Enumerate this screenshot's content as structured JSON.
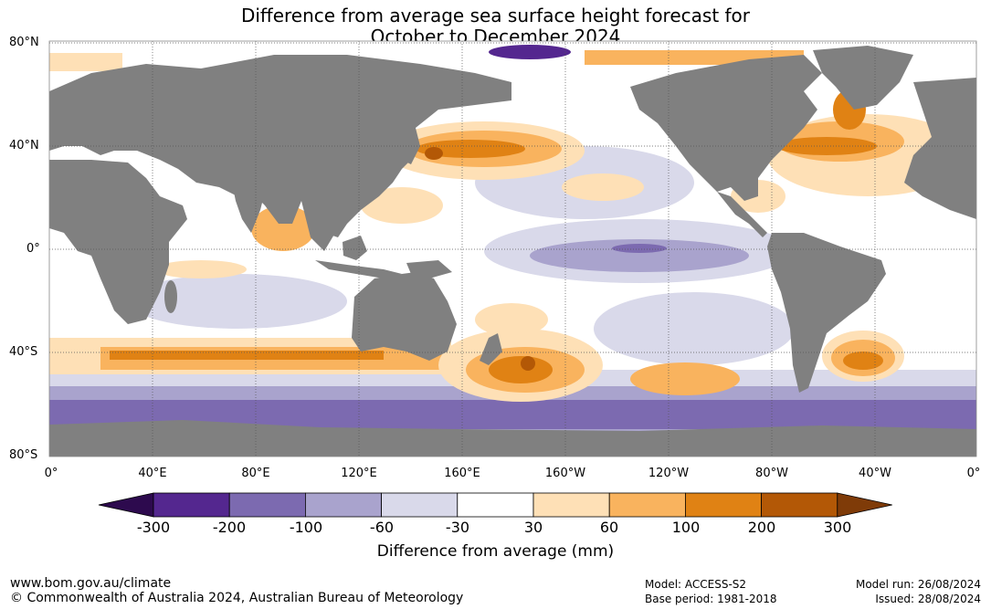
{
  "title": {
    "line1": "Difference from average sea surface height forecast for",
    "line2": "October to December 2024"
  },
  "map": {
    "lat_labels": [
      "80°N",
      "40°N",
      "0°",
      "40°S",
      "80°S"
    ],
    "lon_labels": [
      "0°",
      "40°E",
      "80°E",
      "120°E",
      "160°E",
      "160°W",
      "120°W",
      "80°W",
      "40°W",
      "0°"
    ],
    "colors": {
      "land": "#808080",
      "ocean_neutral": "#ffffff",
      "gridline": "#555555"
    }
  },
  "colorbar": {
    "title": "Difference from average (mm)",
    "tick_labels": [
      "-300",
      "-200",
      "-100",
      "-60",
      "-30",
      "30",
      "60",
      "100",
      "200",
      "300"
    ],
    "colors": [
      "#2d0a4e",
      "#54278f",
      "#7c6ab0",
      "#a9a3cd",
      "#d9d9ea",
      "#ffffff",
      "#fee0b6",
      "#f9b35e",
      "#e08214",
      "#b35806",
      "#7f3b08"
    ]
  },
  "footer": {
    "url": "www.bom.gov.au/climate",
    "copyright": "© Commonwealth of Australia 2024, Australian Bureau of Meteorology",
    "model": "Model: ACCESS-S2",
    "base_period": "Base period: 1981-2018",
    "model_run": "Model run: 26/08/2024",
    "issued": "Issued: 28/08/2024"
  }
}
